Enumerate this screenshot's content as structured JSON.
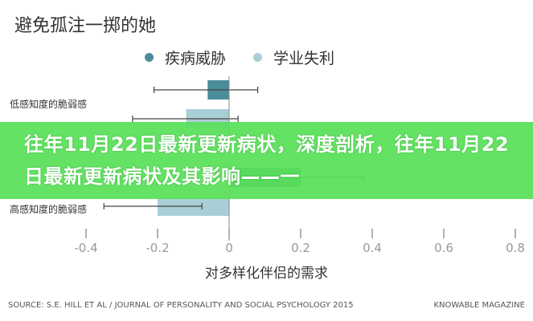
{
  "chart_data": {
    "type": "bar",
    "orientation": "horizontal",
    "title": "避免孤注一掷的她",
    "xlabel": "对多样化伴侣的需求",
    "ylabel": "",
    "xlim": [
      -0.4,
      0.8
    ],
    "xticks": [
      "-0.4",
      "-0.2",
      "0",
      "0.2",
      "0.4",
      "0.6",
      "0.8"
    ],
    "categories": [
      "低感知度的脆弱感",
      "高感知度的脆弱感"
    ],
    "legend_position": "top",
    "grid": false,
    "series": [
      {
        "name": "疾病威胁",
        "color": "#4a8d9a",
        "values": [
          -0.06,
          0.2
        ],
        "error_low": [
          -0.21,
          0.03
        ],
        "error_high": [
          0.08,
          0.375
        ]
      },
      {
        "name": "学业失利",
        "color": "#a9cfd6",
        "values": [
          -0.12,
          -0.2
        ],
        "error_low": [
          -0.27,
          -0.35
        ],
        "error_high": [
          0.025,
          -0.076
        ]
      }
    ]
  },
  "footer": {
    "source": "SOURCE: S.E. HILL ET AL / JOURNAL OF PERSONALITY AND SOCIAL PSYCHOLOGY 2015",
    "brand": "KNOWABLE MAGAZINE"
  },
  "banner": {
    "text": "往年11月22日最新更新病状，深度剖析，往年11月22日最新更新病状及其影响——一",
    "color": "#5ee05e"
  }
}
